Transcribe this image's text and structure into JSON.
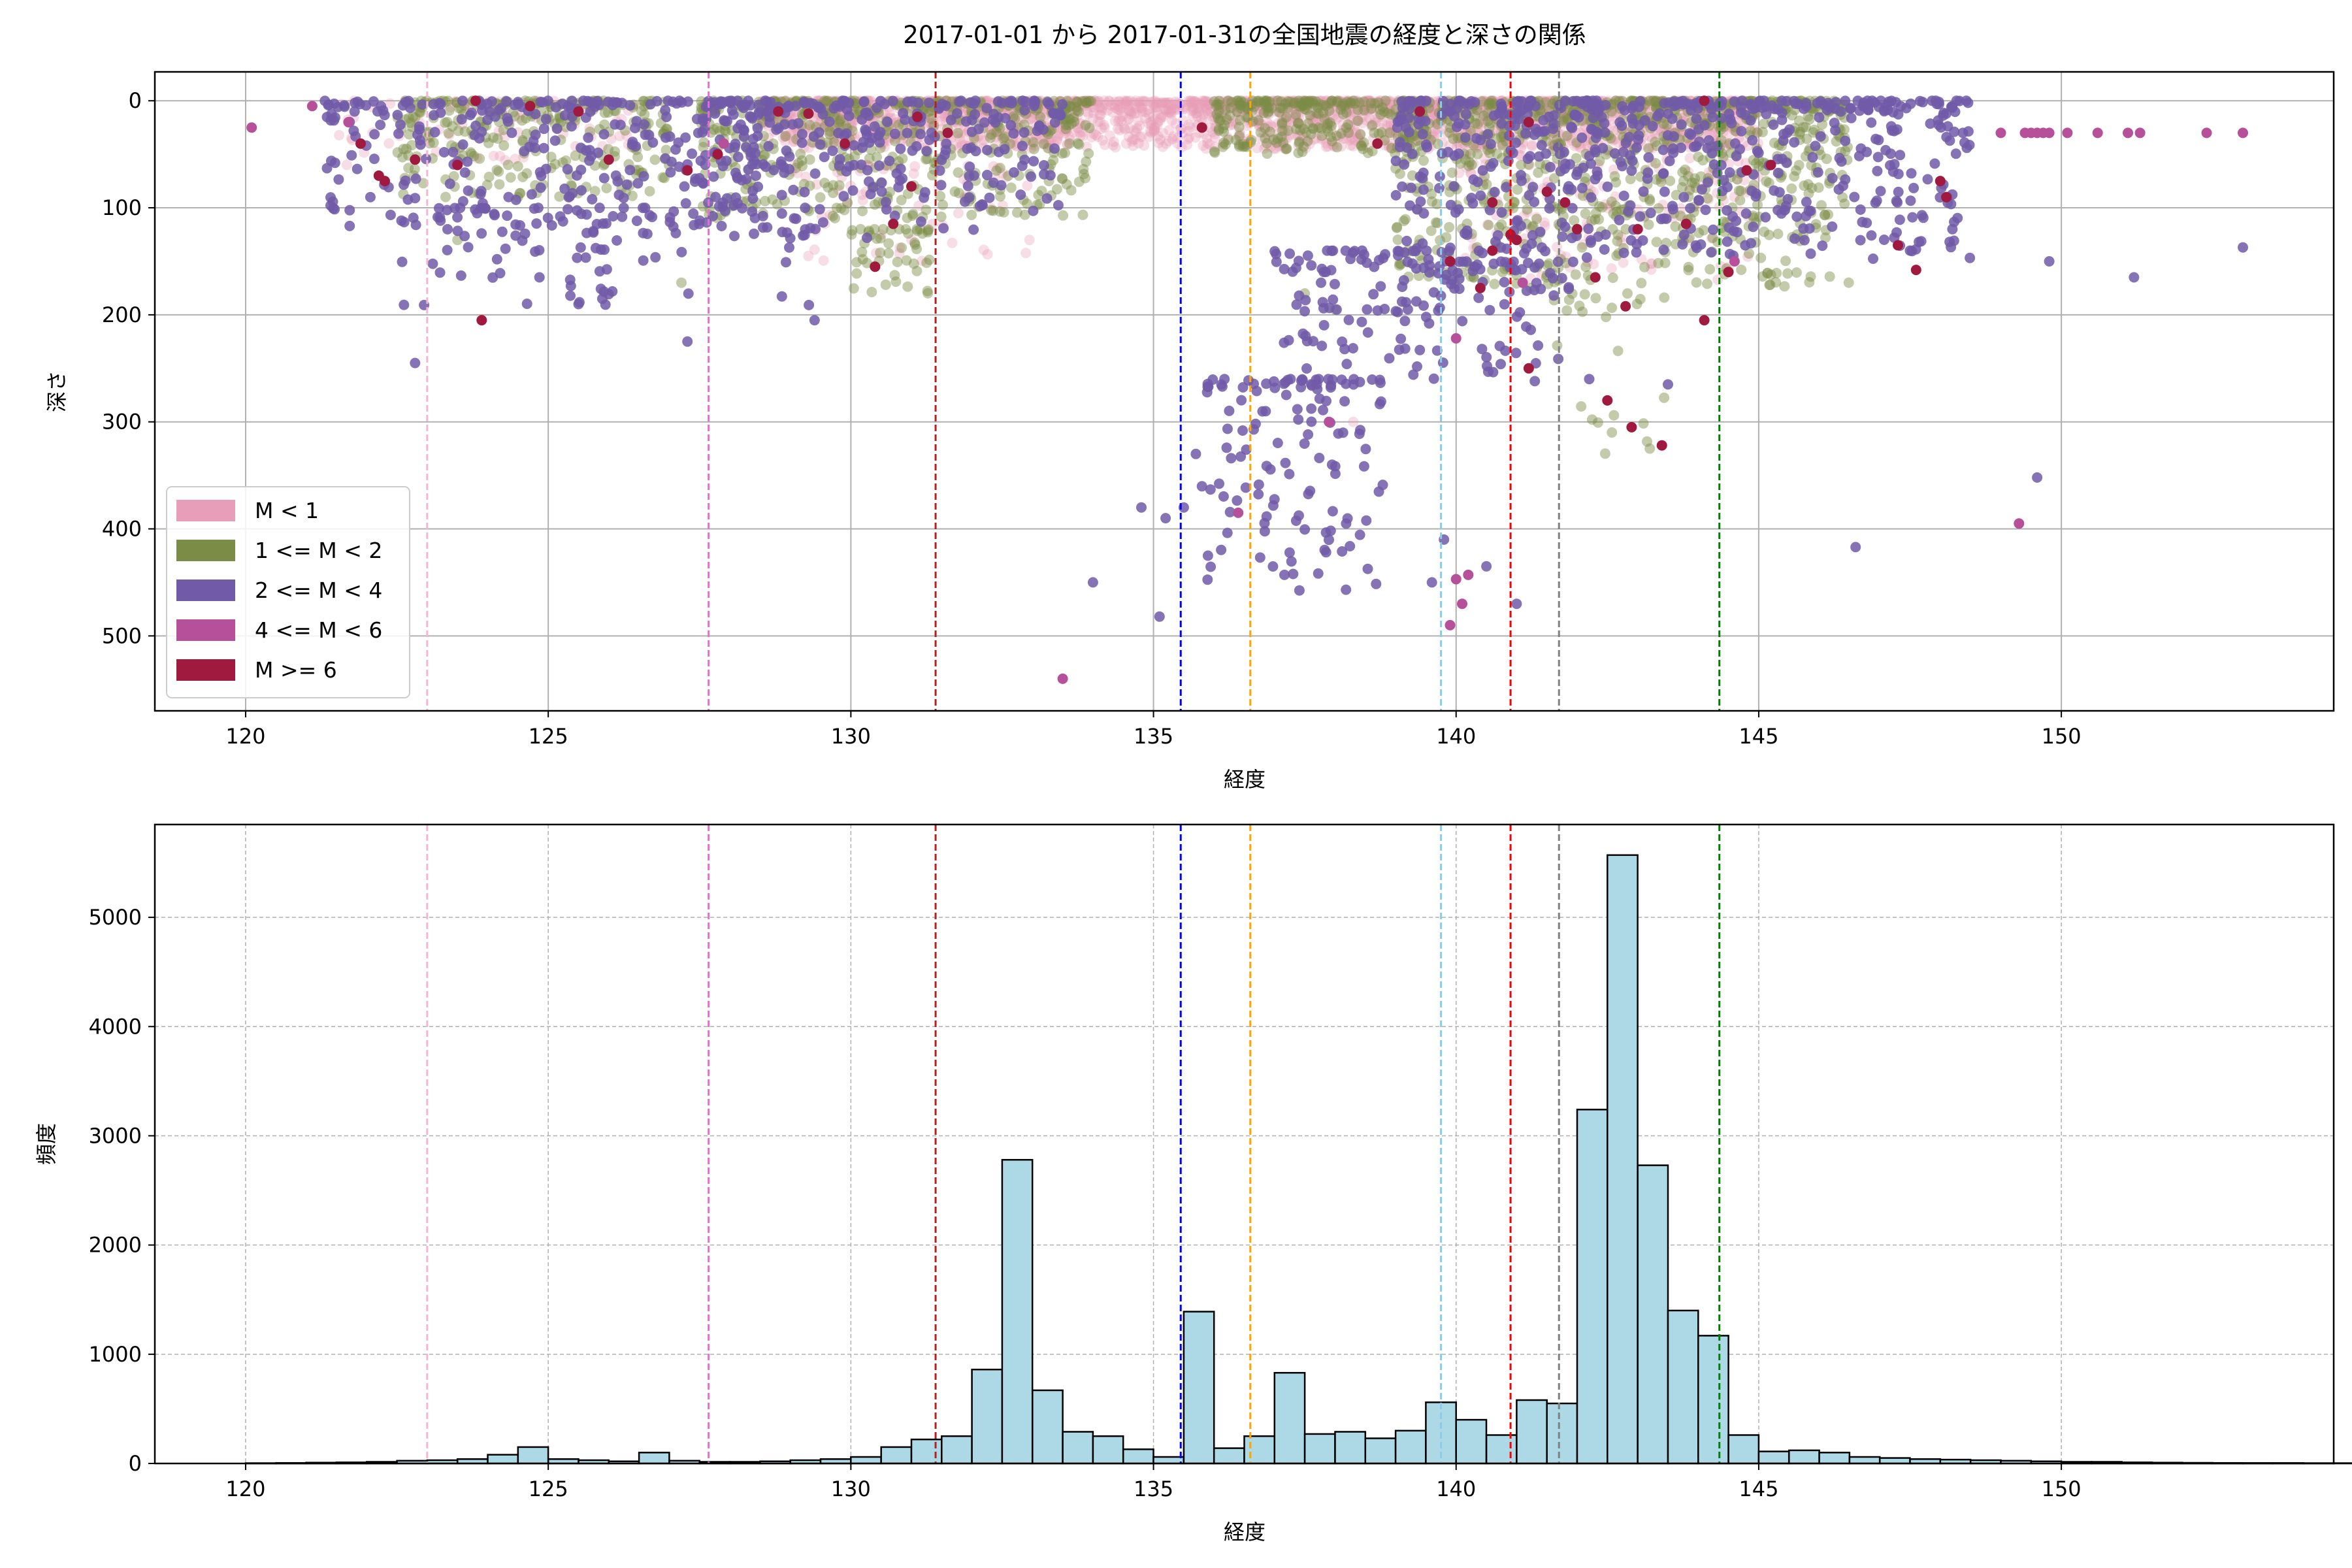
{
  "title": "2017-01-01 から 2017-01-31の全国地震の経度と深さの関係",
  "colors": {
    "m_lt1": "#e79eb8",
    "m_1_2": "#7a8c45",
    "m_2_4": "#715aa8",
    "m_4_6": "#b6509a",
    "m_ge6": "#a0193e",
    "hist_fill": "#add8e6",
    "hist_edge": "#000000",
    "grid": "#b0b0b0"
  },
  "chart_data": [
    {
      "type": "scatter",
      "xlabel": "経度",
      "ylabel": "深さ",
      "xlim": [
        118.5,
        154.5
      ],
      "ylim": [
        570,
        -27
      ],
      "y_inverted": true,
      "grid": true,
      "legend_placement": "lower-left",
      "xticks": [
        120,
        125,
        130,
        135,
        140,
        145,
        150
      ],
      "yticks": [
        0,
        100,
        200,
        300,
        400,
        500
      ],
      "legend": [
        "M < 1",
        "1 <= M < 2",
        "2 <= M < 4",
        "4 <= M < 6",
        "M >= 6"
      ],
      "vlines": [
        {
          "x": 123.0,
          "color": "#f4b6d2"
        },
        {
          "x": 127.65,
          "color": "#e36fd6"
        },
        {
          "x": 131.4,
          "color": "#b22222"
        },
        {
          "x": 135.45,
          "color": "#0000ff"
        },
        {
          "x": 136.6,
          "color": "#ffa500"
        },
        {
          "x": 139.75,
          "color": "#87ceeb"
        },
        {
          "x": 140.9,
          "color": "#ff0000"
        },
        {
          "x": 141.7,
          "color": "#808080"
        },
        {
          "x": 144.35,
          "color": "#008000"
        }
      ],
      "series": [
        {
          "name": "M < 1",
          "clusters": [
            {
              "x": [
                128.5,
                145.0
              ],
              "y": [
                0,
                45
              ],
              "n": 2200
            },
            {
              "x": [
                140.0,
                145.0
              ],
              "y": [
                40,
                170
              ],
              "n": 160
            },
            {
              "x": [
                129.0,
                133.0
              ],
              "y": [
                60,
                150
              ],
              "n": 60
            },
            {
              "x": [
                121.5,
                126.5
              ],
              "y": [
                0,
                60
              ],
              "n": 80
            }
          ],
          "points": [
            [
              138.3,
              300
            ],
            [
              145.7,
              5
            ],
            [
              131.0,
              130
            ],
            [
              130.5,
              125
            ]
          ]
        },
        {
          "name": "1 <= M < 2",
          "clusters": [
            {
              "x": [
                127.5,
                134.0
              ],
              "y": [
                0,
                110
              ],
              "n": 500
            },
            {
              "x": [
                139.0,
                146.5
              ],
              "y": [
                0,
                175
              ],
              "n": 850
            },
            {
              "x": [
                122.5,
                127.0
              ],
              "y": [
                0,
                90
              ],
              "n": 260
            },
            {
              "x": [
                130.0,
                131.3
              ],
              "y": [
                120,
                180
              ],
              "n": 50
            },
            {
              "x": [
                136.0,
                139.5
              ],
              "y": [
                0,
                50
              ],
              "n": 250
            },
            {
              "x": [
                141.5,
                143.5
              ],
              "y": [
                180,
                330
              ],
              "n": 25
            }
          ],
          "points": [
            [
              123.5,
              130
            ],
            [
              124.5,
              90
            ],
            [
              137.5,
              180
            ],
            [
              143.2,
              325
            ],
            [
              127.2,
              170
            ],
            [
              138.0,
              195
            ]
          ]
        },
        {
          "name": "2 <= M < 4",
          "clusters": [
            {
              "x": [
                121.3,
                128.5
              ],
              "y": [
                0,
                120
              ],
              "n": 280
            },
            {
              "x": [
                122.5,
                126.0
              ],
              "y": [
                100,
                210
              ],
              "n": 60
            },
            {
              "x": [
                127.5,
                133.5
              ],
              "y": [
                0,
                130
              ],
              "n": 300
            },
            {
              "x": [
                139.0,
                148.5
              ],
              "y": [
                0,
                150
              ],
              "n": 600
            },
            {
              "x": [
                137.0,
                140.0
              ],
              "y": [
                140,
                260
              ],
              "n": 90
            },
            {
              "x": [
                135.8,
                138.8
              ],
              "y": [
                260,
                460
              ],
              "n": 130
            },
            {
              "x": [
                139.0,
                142.0
              ],
              "y": [
                150,
                260
              ],
              "n": 80
            },
            {
              "x": [
                124.5,
                129.5
              ],
              "y": [
                100,
                200
              ],
              "n": 40
            }
          ],
          "points": [
            [
              134.0,
              450
            ],
            [
              135.1,
              482
            ],
            [
              135.2,
              390
            ],
            [
              135.5,
              380
            ],
            [
              135.7,
              330
            ],
            [
              135.9,
              425
            ],
            [
              134.8,
              380
            ],
            [
              139.6,
              450
            ],
            [
              139.8,
              410
            ],
            [
              141.0,
              470
            ],
            [
              146.6,
              417
            ],
            [
              149.6,
              352
            ],
            [
              149.8,
              150
            ],
            [
              151.2,
              165
            ],
            [
              153.0,
              137
            ],
            [
              122.8,
              245
            ],
            [
              129.4,
              205
            ],
            [
              127.3,
              225
            ],
            [
              126.6,
              100
            ],
            [
              125.5,
              190
            ],
            [
              148.2,
              120
            ],
            [
              147.5,
              140
            ],
            [
              143.5,
              265
            ],
            [
              142.2,
              260
            ],
            [
              141.3,
              262
            ],
            [
              140.5,
              435
            ]
          ]
        },
        {
          "name": "4 <= M < 6",
          "points": [
            [
              120.1,
              25
            ],
            [
              121.1,
              5
            ],
            [
              133.5,
              540
            ],
            [
              136.4,
              385
            ],
            [
              140.0,
              447
            ],
            [
              140.2,
              443
            ],
            [
              140.1,
              470
            ],
            [
              140.0,
              222
            ],
            [
              139.9,
              490
            ],
            [
              149.3,
              395
            ],
            [
              149.0,
              30
            ],
            [
              149.4,
              30
            ],
            [
              149.5,
              30
            ],
            [
              149.6,
              30
            ],
            [
              149.7,
              30
            ],
            [
              149.8,
              30
            ],
            [
              150.1,
              30
            ],
            [
              150.6,
              30
            ],
            [
              151.1,
              30
            ],
            [
              151.3,
              30
            ],
            [
              152.4,
              30
            ],
            [
              153.0,
              30
            ],
            [
              137.9,
              300
            ],
            [
              144.6,
              150
            ],
            [
              121.7,
              20
            ],
            [
              127.9,
              40
            ],
            [
              141.1,
              170
            ]
          ]
        },
        {
          "name": "M >= 6",
          "points": [
            [
              123.9,
              205
            ],
            [
              123.8,
              0
            ],
            [
              124.7,
              5
            ],
            [
              122.2,
              70
            ],
            [
              122.3,
              75
            ],
            [
              125.5,
              10
            ],
            [
              130.4,
              155
            ],
            [
              131.1,
              15
            ],
            [
              129.3,
              12
            ],
            [
              128.8,
              10
            ],
            [
              127.8,
              50
            ],
            [
              131.6,
              30
            ],
            [
              131.0,
              80
            ],
            [
              130.7,
              115
            ],
            [
              129.9,
              40
            ],
            [
              127.3,
              65
            ],
            [
              126.0,
              55
            ],
            [
              139.9,
              150
            ],
            [
              140.4,
              175
            ],
            [
              140.6,
              140
            ],
            [
              140.9,
              125
            ],
            [
              141.0,
              130
            ],
            [
              141.2,
              20
            ],
            [
              141.5,
              85
            ],
            [
              141.8,
              95
            ],
            [
              142.0,
              120
            ],
            [
              142.3,
              165
            ],
            [
              142.5,
              280
            ],
            [
              142.8,
              192
            ],
            [
              142.9,
              305
            ],
            [
              143.4,
              322
            ],
            [
              143.8,
              115
            ],
            [
              144.1,
              205
            ],
            [
              144.5,
              160
            ],
            [
              144.8,
              65
            ],
            [
              145.2,
              60
            ],
            [
              147.3,
              135
            ],
            [
              147.6,
              158
            ],
            [
              148.0,
              75
            ],
            [
              148.1,
              90
            ],
            [
              143.0,
              120
            ],
            [
              141.2,
              250
            ],
            [
              121.9,
              40
            ],
            [
              122.8,
              55
            ],
            [
              123.5,
              60
            ],
            [
              135.8,
              25
            ],
            [
              138.7,
              40
            ],
            [
              139.4,
              10
            ],
            [
              144.1,
              0
            ],
            [
              140.6,
              95
            ]
          ]
        }
      ]
    },
    {
      "type": "bar",
      "subtype": "histogram",
      "xlabel": "経度",
      "ylabel": "頻度",
      "xlim": [
        118.5,
        154.5
      ],
      "ylim": [
        0,
        5850
      ],
      "grid": true,
      "grid_style": "dashed",
      "xticks": [
        120,
        125,
        130,
        135,
        140,
        145,
        150
      ],
      "yticks": [
        0,
        1000,
        2000,
        3000,
        4000,
        5000
      ],
      "bin_start": 120.0,
      "bin_width": 0.5,
      "values": [
        3,
        5,
        8,
        10,
        15,
        25,
        30,
        40,
        80,
        150,
        40,
        30,
        20,
        100,
        25,
        15,
        15,
        20,
        30,
        40,
        60,
        150,
        220,
        250,
        860,
        2780,
        670,
        290,
        250,
        130,
        60,
        1390,
        140,
        250,
        830,
        270,
        290,
        230,
        300,
        560,
        400,
        260,
        580,
        550,
        3240,
        5570,
        2730,
        1400,
        1170,
        260,
        110,
        120,
        100,
        60,
        50,
        40,
        35,
        30,
        25,
        20,
        15,
        15,
        10,
        8,
        6,
        5,
        4,
        4,
        3,
        3,
        3,
        3,
        2,
        2,
        2,
        2
      ],
      "vlines": [
        {
          "x": 123.0,
          "color": "#f4b6d2"
        },
        {
          "x": 127.65,
          "color": "#e36fd6"
        },
        {
          "x": 131.4,
          "color": "#b22222"
        },
        {
          "x": 135.45,
          "color": "#0000ff"
        },
        {
          "x": 136.6,
          "color": "#ffa500"
        },
        {
          "x": 139.75,
          "color": "#87ceeb"
        },
        {
          "x": 140.9,
          "color": "#ff0000"
        },
        {
          "x": 141.7,
          "color": "#808080"
        },
        {
          "x": 144.35,
          "color": "#008000"
        }
      ]
    }
  ]
}
